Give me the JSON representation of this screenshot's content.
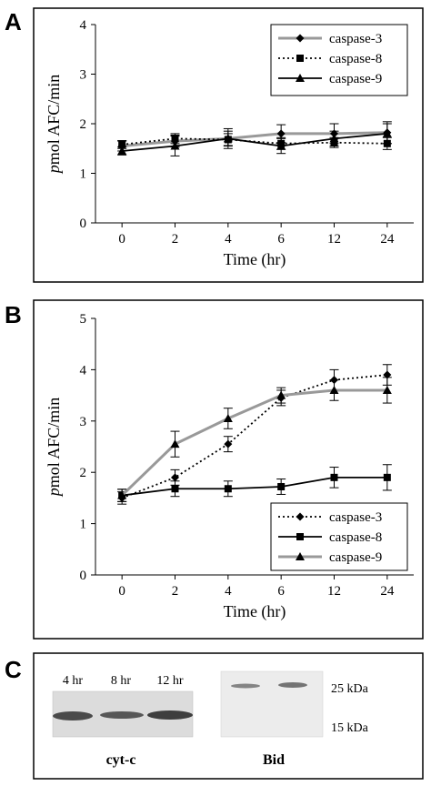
{
  "chart_data": [
    {
      "panel": "A",
      "type": "line",
      "categories": [
        "0",
        "2",
        "4",
        "6",
        "12",
        "24"
      ],
      "xlabel": "Time (hr)",
      "ylabel": "pmol AFC/min",
      "ylabel_italic_prefix": "p",
      "ylabel_rest": "mol AFC/min",
      "ylim": [
        0,
        4
      ],
      "yticks": [
        "0",
        "1",
        "2",
        "3",
        "4"
      ],
      "grid": false,
      "legend_position": "top-right",
      "series": [
        {
          "name": "caspase-3",
          "values": [
            1.55,
            1.65,
            1.7,
            1.8,
            1.8,
            1.82
          ],
          "errors": [
            0.1,
            0.12,
            0.15,
            0.18,
            0.2,
            0.22
          ],
          "color": "#999999",
          "dash": "solid",
          "marker": "diamond"
        },
        {
          "name": "caspase-8",
          "values": [
            1.58,
            1.7,
            1.68,
            1.6,
            1.62,
            1.6
          ],
          "errors": [
            0.08,
            0.1,
            0.12,
            0.12,
            0.1,
            0.12
          ],
          "color": "#000000",
          "dash": "dotted",
          "marker": "square"
        },
        {
          "name": "caspase-9",
          "values": [
            1.45,
            1.55,
            1.7,
            1.55,
            1.7,
            1.8
          ],
          "errors": [
            0.08,
            0.2,
            0.2,
            0.15,
            0.15,
            0.2
          ],
          "color": "#000000",
          "dash": "solid",
          "marker": "triangle"
        }
      ]
    },
    {
      "panel": "B",
      "type": "line",
      "categories": [
        "0",
        "2",
        "4",
        "6",
        "12",
        "24"
      ],
      "xlabel": "Time (hr)",
      "ylabel": "pmol AFC/min",
      "ylabel_italic_prefix": "p",
      "ylabel_rest": "mol AFC/min",
      "ylim": [
        0,
        5
      ],
      "yticks": [
        "0",
        "1",
        "2",
        "3",
        "4",
        "5"
      ],
      "grid": false,
      "legend_position": "bottom-right",
      "series": [
        {
          "name": "caspase-3",
          "values": [
            1.5,
            1.9,
            2.55,
            3.45,
            3.8,
            3.9
          ],
          "errors": [
            0.12,
            0.15,
            0.15,
            0.15,
            0.2,
            0.2
          ],
          "color": "#000000",
          "dash": "dotted",
          "marker": "diamond"
        },
        {
          "name": "caspase-8",
          "values": [
            1.55,
            1.68,
            1.68,
            1.72,
            1.9,
            1.9
          ],
          "errors": [
            0.12,
            0.15,
            0.15,
            0.15,
            0.2,
            0.25
          ],
          "color": "#000000",
          "dash": "solid",
          "marker": "square"
        },
        {
          "name": "caspase-9",
          "values": [
            1.55,
            2.55,
            3.05,
            3.5,
            3.6,
            3.6
          ],
          "errors": [
            0.12,
            0.25,
            0.2,
            0.15,
            0.2,
            0.25
          ],
          "color": "#999999",
          "dash": "solid",
          "marker": "triangle"
        }
      ]
    }
  ],
  "panels": {
    "a": {
      "letter": "A"
    },
    "b": {
      "letter": "B"
    },
    "c": {
      "letter": "C",
      "lanes": [
        "4 hr",
        "8 hr",
        "12 hr"
      ],
      "blot1_label": "cyt-c",
      "blot2_label": "Bid",
      "markers": [
        "25 kDa",
        "15 kDa"
      ]
    }
  }
}
